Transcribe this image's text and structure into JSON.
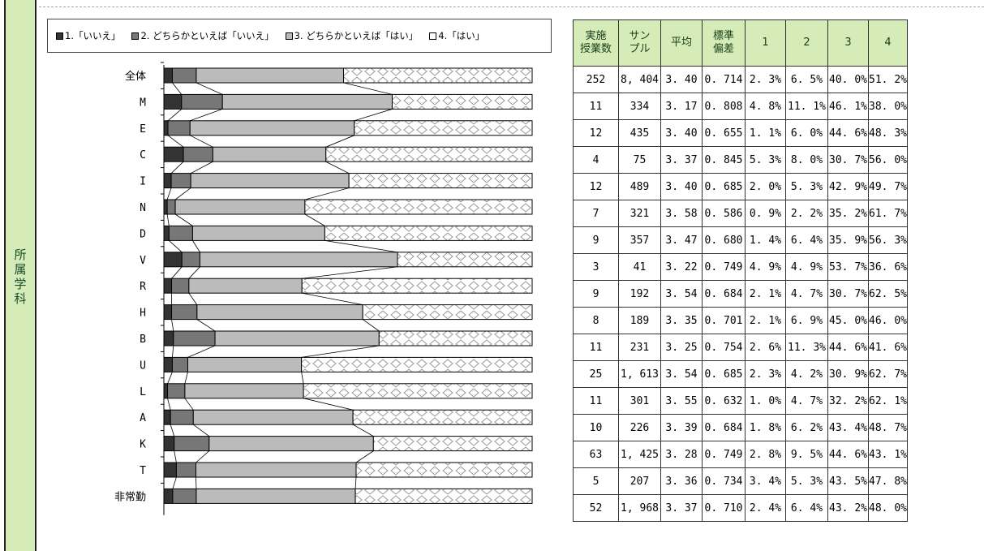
{
  "side_label": "所属学科",
  "legend": [
    {
      "label": "1.「いいえ」",
      "color": "#333333"
    },
    {
      "label": "2. どちらかといえば「いいえ」",
      "color": "#777777"
    },
    {
      "label": "3. どちらかといえば「はい」",
      "color": "#bbbbbb"
    },
    {
      "label": "4.「はい」",
      "color": "#ffffff"
    }
  ],
  "table": {
    "headers": [
      "実施\n授業数",
      "サン\nプル",
      "平均",
      "標準\n偏差",
      "1",
      "2",
      "3",
      "4"
    ],
    "rows": [
      [
        "252",
        "8, 404",
        "3. 40",
        "0. 714",
        "2. 3%",
        "6. 5%",
        "40. 0%",
        "51. 2%"
      ],
      [
        "11",
        "334",
        "3. 17",
        "0. 808",
        "4. 8%",
        "11. 1%",
        "46. 1%",
        "38. 0%"
      ],
      [
        "12",
        "435",
        "3. 40",
        "0. 655",
        "1. 1%",
        "6. 0%",
        "44. 6%",
        "48. 3%"
      ],
      [
        "4",
        "75",
        "3. 37",
        "0. 845",
        "5. 3%",
        "8. 0%",
        "30. 7%",
        "56. 0%"
      ],
      [
        "12",
        "489",
        "3. 40",
        "0. 685",
        "2. 0%",
        "5. 3%",
        "42. 9%",
        "49. 7%"
      ],
      [
        "7",
        "321",
        "3. 58",
        "0. 586",
        "0. 9%",
        "2. 2%",
        "35. 2%",
        "61. 7%"
      ],
      [
        "9",
        "357",
        "3. 47",
        "0. 680",
        "1. 4%",
        "6. 4%",
        "35. 9%",
        "56. 3%"
      ],
      [
        "3",
        "41",
        "3. 22",
        "0. 749",
        "4. 9%",
        "4. 9%",
        "53. 7%",
        "36. 6%"
      ],
      [
        "9",
        "192",
        "3. 54",
        "0. 684",
        "2. 1%",
        "4. 7%",
        "30. 7%",
        "62. 5%"
      ],
      [
        "8",
        "189",
        "3. 35",
        "0. 701",
        "2. 1%",
        "6. 9%",
        "45. 0%",
        "46. 0%"
      ],
      [
        "11",
        "231",
        "3. 25",
        "0. 754",
        "2. 6%",
        "11. 3%",
        "44. 6%",
        "41. 6%"
      ],
      [
        "25",
        "1, 613",
        "3. 54",
        "0. 685",
        "2. 3%",
        "4. 2%",
        "30. 9%",
        "62. 7%"
      ],
      [
        "11",
        "301",
        "3. 55",
        "0. 632",
        "1. 0%",
        "4. 7%",
        "32. 2%",
        "62. 1%"
      ],
      [
        "10",
        "226",
        "3. 39",
        "0. 684",
        "1. 8%",
        "6. 2%",
        "43. 4%",
        "48. 7%"
      ],
      [
        "63",
        "1, 425",
        "3. 28",
        "0. 749",
        "2. 8%",
        "9. 5%",
        "44. 6%",
        "43. 1%"
      ],
      [
        "5",
        "207",
        "3. 36",
        "0. 734",
        "3. 4%",
        "5. 3%",
        "43. 5%",
        "47. 8%"
      ],
      [
        "52",
        "1, 968",
        "3. 37",
        "0. 710",
        "2. 4%",
        "6. 4%",
        "43. 2%",
        "48. 0%"
      ]
    ]
  },
  "chart_data": {
    "type": "bar",
    "stacked": "100%",
    "orientation": "horizontal",
    "categories": [
      "全体",
      "M",
      "E",
      "C",
      "I",
      "N",
      "D",
      "V",
      "R",
      "H",
      "B",
      "U",
      "L",
      "A",
      "K",
      "T",
      "非常勤"
    ],
    "series": [
      {
        "name": "1.「いいえ」",
        "values": [
          2.3,
          4.8,
          1.1,
          5.3,
          2.0,
          0.9,
          1.4,
          4.9,
          2.1,
          2.1,
          2.6,
          2.3,
          1.0,
          1.8,
          2.8,
          3.4,
          2.4
        ]
      },
      {
        "name": "2. どちらかといえば「いいえ」",
        "values": [
          6.5,
          11.1,
          6.0,
          8.0,
          5.3,
          2.2,
          6.4,
          4.9,
          4.7,
          6.9,
          11.3,
          4.2,
          4.7,
          6.2,
          9.5,
          5.3,
          6.4
        ]
      },
      {
        "name": "3. どちらかといえば「はい」",
        "values": [
          40.0,
          46.1,
          44.6,
          30.7,
          42.9,
          35.2,
          35.9,
          53.7,
          30.7,
          45.0,
          44.6,
          30.9,
          32.2,
          43.4,
          44.6,
          43.5,
          43.2
        ]
      },
      {
        "name": "4.「はい」",
        "values": [
          51.2,
          38.0,
          48.3,
          56.0,
          49.7,
          61.7,
          56.3,
          36.6,
          62.5,
          46.0,
          41.6,
          62.7,
          62.1,
          48.7,
          43.1,
          47.8,
          48.0
        ]
      }
    ],
    "xlim": [
      0,
      100
    ],
    "series_lines": true
  }
}
